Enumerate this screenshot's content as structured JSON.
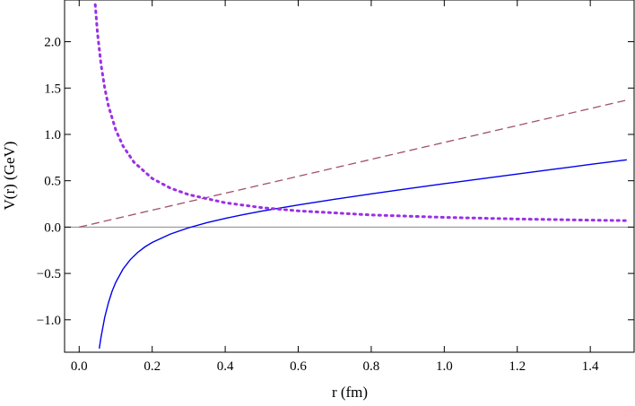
{
  "chart_data": {
    "type": "line",
    "xlabel": "r  (fm)",
    "ylabel": "V(r)  (GeV)",
    "xlim": [
      -0.04,
      1.52
    ],
    "ylim": [
      -1.35,
      2.45
    ],
    "x_ticks": [
      0.0,
      0.2,
      0.4,
      0.6,
      0.8,
      1.0,
      1.2,
      1.4
    ],
    "x_tick_labels": [
      "0.0",
      "0.2",
      "0.4",
      "0.6",
      "0.8",
      "1.0",
      "1.2",
      "1.4"
    ],
    "y_ticks": [
      -1.0,
      -0.5,
      0.0,
      0.5,
      1.0,
      1.5,
      2.0
    ],
    "y_tick_labels": [
      "−1.0",
      "−0.5",
      "0.0",
      "0.5",
      "1.0",
      "1.5",
      "2.0"
    ],
    "grid": false,
    "legend": "none",
    "reference_line_y": 0.0,
    "series": [
      {
        "style": "solid",
        "color": "#0000ee",
        "x": [
          0.055,
          0.06,
          0.07,
          0.08,
          0.09,
          0.1,
          0.12,
          0.14,
          0.16,
          0.18,
          0.2,
          0.25,
          0.3,
          0.35,
          0.4,
          0.45,
          0.5,
          0.6,
          0.7,
          0.8,
          0.9,
          1.0,
          1.1,
          1.2,
          1.3,
          1.4,
          1.5
        ],
        "y": [
          -1.31,
          -1.183,
          -0.973,
          -0.817,
          -0.694,
          -0.597,
          -0.453,
          -0.351,
          -0.274,
          -0.214,
          -0.166,
          -0.075,
          -0.007,
          0.048,
          0.094,
          0.135,
          0.172,
          0.239,
          0.3,
          0.358,
          0.414,
          0.468,
          0.52,
          0.572,
          0.624,
          0.676,
          0.726
        ]
      },
      {
        "style": "dashed",
        "color": "#a05070",
        "x": [
          0.0,
          1.5
        ],
        "y": [
          0.0,
          1.37
        ]
      },
      {
        "style": "dotted",
        "color": "#9b30e6",
        "x": [
          0.044,
          0.05,
          0.06,
          0.07,
          0.08,
          0.1,
          0.12,
          0.15,
          0.2,
          0.25,
          0.3,
          0.4,
          0.5,
          0.6,
          0.8,
          1.0,
          1.2,
          1.4,
          1.5
        ],
        "y": [
          2.4,
          2.1,
          1.75,
          1.5,
          1.31,
          1.05,
          0.875,
          0.7,
          0.525,
          0.42,
          0.35,
          0.2625,
          0.21,
          0.175,
          0.131,
          0.105,
          0.0875,
          0.075,
          0.07
        ]
      }
    ]
  }
}
